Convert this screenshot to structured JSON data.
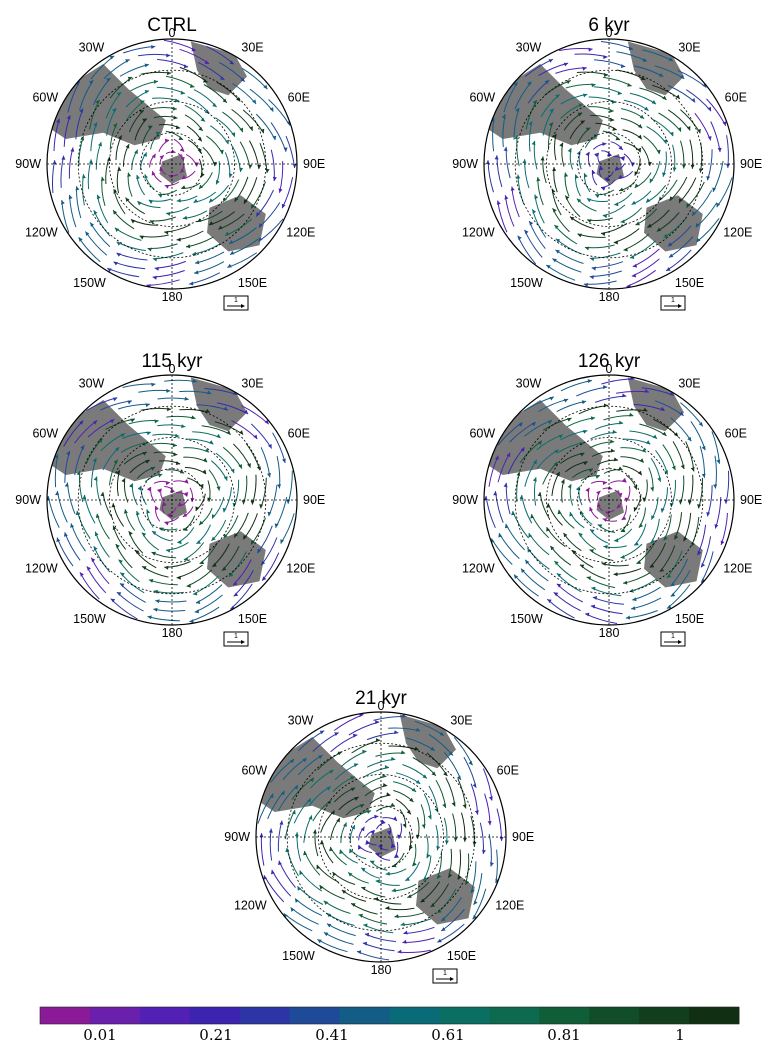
{
  "chart_data": [
    {
      "type": "streamline",
      "title": "CTRL",
      "longitude_labels": {
        "0": "0",
        "30E": "30E",
        "60E": "60E",
        "90E": "90E",
        "120E": "120E",
        "150E": "150E",
        "180": "180",
        "150W": "150W",
        "120W": "120W",
        "90W": "90W",
        "60W": "60W",
        "30W": "30W"
      },
      "reference_vector": "1",
      "pole_speed": "low"
    },
    {
      "type": "streamline",
      "title": "6 kyr",
      "longitude_labels": {
        "0": "0",
        "30E": "30E",
        "60E": "60E",
        "90E": "90E",
        "120E": "120E",
        "150E": "150E",
        "180": "180",
        "150W": "150W",
        "120W": "120W",
        "90W": "90W",
        "60W": "60W",
        "30W": "30W"
      },
      "reference_vector": "1",
      "pole_speed": "mid"
    },
    {
      "type": "streamline",
      "title": "115 kyr",
      "longitude_labels": {
        "0": "0",
        "30E": "30E",
        "60E": "60E",
        "90E": "90E",
        "120E": "120E",
        "150E": "150E",
        "180": "180",
        "150W": "150W",
        "120W": "120W",
        "90W": "90W",
        "60W": "60W",
        "30W": "30W"
      },
      "reference_vector": "1",
      "pole_speed": "low"
    },
    {
      "type": "streamline",
      "title": "126 kyr",
      "longitude_labels": {
        "0": "0",
        "30E": "30E",
        "60E": "60E",
        "90E": "90E",
        "120E": "120E",
        "150E": "150E",
        "180": "180",
        "150W": "150W",
        "120W": "120W",
        "90W": "90W",
        "60W": "60W",
        "30W": "30W"
      },
      "reference_vector": "1",
      "pole_speed": "low"
    },
    {
      "type": "streamline",
      "title": "21 kyr",
      "longitude_labels": {
        "0": "0",
        "30E": "30E",
        "60E": "60E",
        "90E": "90E",
        "120E": "120E",
        "150E": "150E",
        "180": "180",
        "150W": "150W",
        "120W": "120W",
        "90W": "90W",
        "60W": "60W",
        "30W": "30W"
      },
      "reference_vector": "1",
      "pole_speed": "mid"
    }
  ],
  "colorbar": {
    "colors": [
      "#8b1a99",
      "#6a1fad",
      "#5220b5",
      "#3d24b0",
      "#2d35a6",
      "#1f4a98",
      "#125c86",
      "#0a6b78",
      "#0b6e63",
      "#0d6a4e",
      "#0f5e38",
      "#104d28",
      "#113e1c",
      "#112f12"
    ],
    "labels": [
      "0.01",
      "0.21",
      "0.41",
      "0.61",
      "0.81",
      "1"
    ]
  }
}
